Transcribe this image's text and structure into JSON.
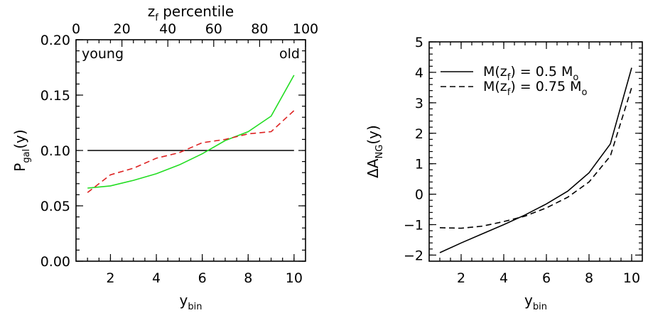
{
  "chart_data": [
    {
      "type": "line",
      "xlabel_main": "y",
      "xlabel_sub": "bin",
      "ylabel_main": "P",
      "ylabel_sub": "gal",
      "ylabel_tail": "(y)",
      "xlim": [
        0.5,
        10.5
      ],
      "ylim": [
        0.0,
        0.2
      ],
      "xticks": [
        2,
        4,
        6,
        8,
        10
      ],
      "xtick_labels": [
        "2",
        "4",
        "6",
        "8",
        "10"
      ],
      "yticks": [
        0.0,
        0.05,
        0.1,
        0.15,
        0.2
      ],
      "ytick_labels": [
        "0.00",
        "0.05",
        "0.10",
        "0.15",
        "0.20"
      ],
      "top_axis": {
        "label_main": "z",
        "label_sub": "f",
        "label_tail": "percentile",
        "ticks": [
          0,
          20,
          40,
          60,
          80,
          100
        ],
        "tick_labels": [
          "0",
          "20",
          "40",
          "60",
          "80",
          "100"
        ]
      },
      "annotations": {
        "left": "young",
        "right": "old"
      },
      "grid": false,
      "series": [
        {
          "color": "#000000",
          "dash": "solid",
          "x": [
            1,
            10
          ],
          "y": [
            0.1,
            0.1
          ]
        },
        {
          "color": "#22dd22",
          "dash": "solid",
          "x": [
            1,
            2,
            3,
            4,
            5,
            6,
            7,
            8,
            9,
            10
          ],
          "y": [
            0.066,
            0.068,
            0.073,
            0.079,
            0.087,
            0.097,
            0.109,
            0.117,
            0.131,
            0.168
          ]
        },
        {
          "color": "#dd2222",
          "dash": "dashed",
          "x": [
            1,
            2,
            3,
            4,
            5,
            6,
            7,
            8,
            9,
            10
          ],
          "y": [
            0.062,
            0.078,
            0.084,
            0.093,
            0.098,
            0.107,
            0.11,
            0.115,
            0.117,
            0.136
          ]
        }
      ]
    },
    {
      "type": "line",
      "xlabel_main": "y",
      "xlabel_sub": "bin",
      "ylabel_main": "ΔA",
      "ylabel_sub": "NG",
      "ylabel_tail": "(y)",
      "xlim": [
        0.5,
        10.5
      ],
      "ylim": [
        -2.2,
        5.0
      ],
      "xticks": [
        2,
        4,
        6,
        8,
        10
      ],
      "xtick_labels": [
        "2",
        "4",
        "6",
        "8",
        "10"
      ],
      "yticks": [
        -2,
        -1,
        0,
        1,
        2,
        3,
        4,
        5
      ],
      "ytick_labels": [
        "−2",
        "−1",
        "0",
        "1",
        "2",
        "3",
        "4",
        "5"
      ],
      "legend_position": "top-left",
      "grid": false,
      "series": [
        {
          "name": "M(z_f) = 0.5 M_o",
          "legend_main": "M(z",
          "legend_sub": "f",
          "legend_tail": ") = 0.5 M",
          "legend_sub2": "o",
          "color": "#000000",
          "dash": "solid",
          "x": [
            1,
            2,
            3,
            4,
            5,
            6,
            7,
            8,
            9,
            10
          ],
          "y": [
            -1.92,
            -1.6,
            -1.3,
            -1.0,
            -0.68,
            -0.32,
            0.1,
            0.7,
            1.65,
            4.15
          ]
        },
        {
          "name": "M(z_f) = 0.75 M_o",
          "legend_main": "M(z",
          "legend_sub": "f",
          "legend_tail": ") = 0.75 M",
          "legend_sub2": "o",
          "color": "#000000",
          "dash": "dashed",
          "x": [
            1,
            2,
            3,
            4,
            5,
            6,
            7,
            8,
            9,
            10
          ],
          "y": [
            -1.1,
            -1.12,
            -1.05,
            -0.9,
            -0.72,
            -0.45,
            -0.1,
            0.4,
            1.25,
            3.5
          ]
        }
      ]
    }
  ]
}
